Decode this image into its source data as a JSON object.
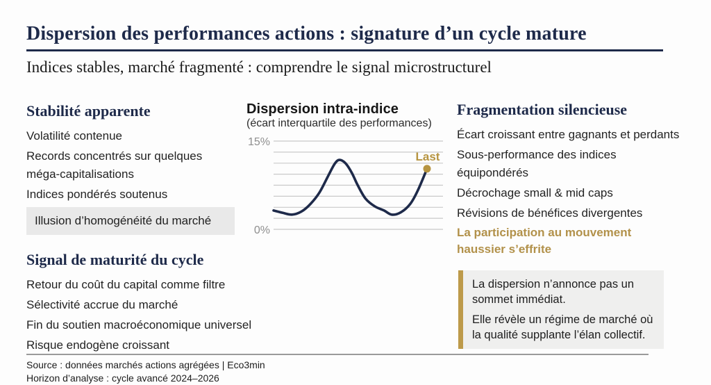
{
  "colors": {
    "navy": "#1e2a4a",
    "gold": "#b69440",
    "gold_text": "#b2914a",
    "grid": "#c9c9c9",
    "axis_label": "#8e8e8e",
    "highlight_bg": "#e9e9e9",
    "callout_bg": "#efefee",
    "callout_border": "#bd9a4a"
  },
  "header": {
    "title": "Dispersion des performances actions : signature d’un cycle mature",
    "subtitle": "Indices stables, marché fragmenté : comprendre le signal microstructurel"
  },
  "left": {
    "heading_top": "Stabilité apparente",
    "items_top": [
      "Volatilité contenue",
      "Records concentrés sur quelques méga-capitalisations",
      "Indices pondérés soutenus"
    ],
    "highlight": "Illusion d’homogénéité du marché",
    "heading_bottom": "Signal de maturité du cycle",
    "items_bottom": [
      "Retour du coût du capital comme filtre",
      "Sélectivité accrue du marché",
      "Fin du soutien macroéconomique universel",
      "Risque endogène croissant"
    ]
  },
  "right": {
    "heading": "Fragmentation silencieuse",
    "items": [
      "Écart croissant entre gagnants et perdants",
      "Sous-performance des indices équipondérés",
      "Décrochage small & mid caps",
      "Révisions de bénéfices divergentes"
    ],
    "accent_item": "La participation au mouvement haussier s’effrite",
    "callout": {
      "line1": "La dispersion n’annonce pas un sommet immédiat.",
      "line2": "Elle révèle un régime de marché où la qualité supplante l’élan collectif."
    }
  },
  "footer": {
    "source": "Source : données marchés actions agrégées | Eco3min",
    "horizon": "Horizon d’analyse : cycle avancé 2024–2026"
  },
  "chart_data": {
    "type": "line",
    "title": "Dispersion intra-indice",
    "subtitle": "(écart interquartile des performances)",
    "series_name": "Écart interquartile des performances",
    "ylim": [
      0,
      15
    ],
    "ytick_labels": [
      "0%",
      "15%"
    ],
    "gridline_count": 9,
    "grid_on": true,
    "x": [
      0.0,
      0.06,
      0.12,
      0.18,
      0.24,
      0.3,
      0.36,
      0.4,
      0.43,
      0.47,
      0.51,
      0.55,
      0.6,
      0.66,
      0.72,
      0.77,
      0.83,
      0.89,
      0.94,
      1.0
    ],
    "values": [
      3.2,
      2.8,
      2.5,
      3.0,
      4.3,
      6.3,
      9.3,
      11.2,
      11.8,
      11.2,
      9.6,
      7.4,
      5.2,
      3.9,
      3.2,
      2.5,
      2.9,
      4.3,
      6.6,
      10.3
    ],
    "last_point_label": "Last",
    "last_point_value": 10.3
  }
}
